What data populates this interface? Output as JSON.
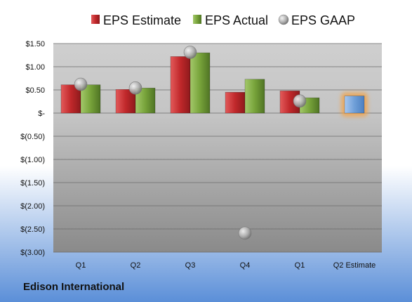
{
  "company": "Edison International",
  "colors": {
    "estimate": "#c0282b",
    "actual": "#77a33a",
    "gaap": "#b0b0b0",
    "q2_estimate": "#6f9fd8",
    "highlight": "#f5a040",
    "bg_top": "#ffffff",
    "bg_bottom": "#5b8fd8",
    "plot_top": "#cfcfcf",
    "plot_bottom": "#8a8a8a"
  },
  "chart_data": {
    "type": "bar",
    "categories": [
      "Q1",
      "Q2",
      "Q3",
      "Q4",
      "Q1",
      "Q2 Estimate"
    ],
    "series": [
      {
        "name": "EPS Estimate",
        "type": "bar",
        "values": [
          0.61,
          0.51,
          1.22,
          0.45,
          0.48,
          null
        ]
      },
      {
        "name": "EPS Actual",
        "type": "bar",
        "values": [
          0.61,
          0.54,
          1.3,
          0.73,
          0.33,
          null
        ]
      },
      {
        "name": "EPS GAAP",
        "type": "scatter",
        "values": [
          0.62,
          0.54,
          1.31,
          -2.59,
          0.26,
          null
        ]
      },
      {
        "type": "bar",
        "values": [
          null,
          null,
          null,
          null,
          null,
          0.37
        ]
      }
    ],
    "yticks": [
      {
        "value": 1.5,
        "label": "$1.50"
      },
      {
        "value": 1.0,
        "label": "$1.00"
      },
      {
        "value": 0.5,
        "label": "$0.50"
      },
      {
        "value": 0.0,
        "label": "$-"
      },
      {
        "value": -0.5,
        "label": "$(0.50)"
      },
      {
        "value": -1.0,
        "label": "$(1.00)"
      },
      {
        "value": -1.5,
        "label": "$(1.50)"
      },
      {
        "value": -2.0,
        "label": "$(2.00)"
      },
      {
        "value": -2.5,
        "label": "$(2.50)"
      },
      {
        "value": -3.0,
        "label": "$(3.00)"
      }
    ],
    "ylim": [
      -3.0,
      1.5
    ],
    "grid": true,
    "legend_position": "top"
  }
}
